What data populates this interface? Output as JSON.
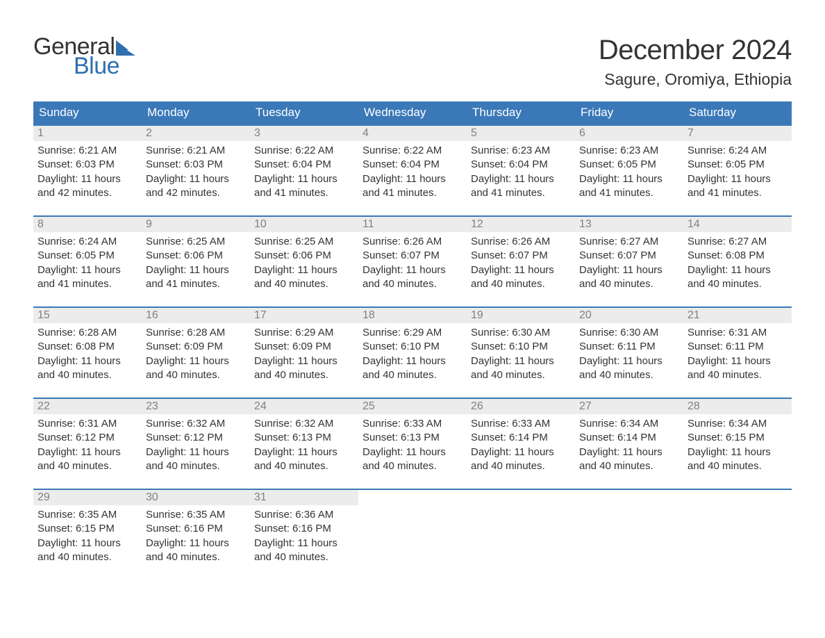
{
  "brand": {
    "part1": "General",
    "part2": "Blue",
    "flag_color": "#2f6fb0"
  },
  "title": "December 2024",
  "location": "Sagure, Oromiya, Ethiopia",
  "colors": {
    "header_bg": "#3b78b8",
    "header_text": "#ffffff",
    "daynum_bg": "#ececec",
    "daynum_text": "#808080",
    "body_text": "#333333",
    "rule": "#3b78b8",
    "background": "#ffffff"
  },
  "typography": {
    "title_fontsize": 40,
    "location_fontsize": 23,
    "dow_fontsize": 17,
    "daynum_fontsize": 16,
    "cell_fontsize": 15
  },
  "days_of_week": [
    "Sunday",
    "Monday",
    "Tuesday",
    "Wednesday",
    "Thursday",
    "Friday",
    "Saturday"
  ],
  "weeks": [
    [
      {
        "n": "1",
        "sunrise": "Sunrise: 6:21 AM",
        "sunset": "Sunset: 6:03 PM",
        "dl1": "Daylight: 11 hours",
        "dl2": "and 42 minutes."
      },
      {
        "n": "2",
        "sunrise": "Sunrise: 6:21 AM",
        "sunset": "Sunset: 6:03 PM",
        "dl1": "Daylight: 11 hours",
        "dl2": "and 42 minutes."
      },
      {
        "n": "3",
        "sunrise": "Sunrise: 6:22 AM",
        "sunset": "Sunset: 6:04 PM",
        "dl1": "Daylight: 11 hours",
        "dl2": "and 41 minutes."
      },
      {
        "n": "4",
        "sunrise": "Sunrise: 6:22 AM",
        "sunset": "Sunset: 6:04 PM",
        "dl1": "Daylight: 11 hours",
        "dl2": "and 41 minutes."
      },
      {
        "n": "5",
        "sunrise": "Sunrise: 6:23 AM",
        "sunset": "Sunset: 6:04 PM",
        "dl1": "Daylight: 11 hours",
        "dl2": "and 41 minutes."
      },
      {
        "n": "6",
        "sunrise": "Sunrise: 6:23 AM",
        "sunset": "Sunset: 6:05 PM",
        "dl1": "Daylight: 11 hours",
        "dl2": "and 41 minutes."
      },
      {
        "n": "7",
        "sunrise": "Sunrise: 6:24 AM",
        "sunset": "Sunset: 6:05 PM",
        "dl1": "Daylight: 11 hours",
        "dl2": "and 41 minutes."
      }
    ],
    [
      {
        "n": "8",
        "sunrise": "Sunrise: 6:24 AM",
        "sunset": "Sunset: 6:05 PM",
        "dl1": "Daylight: 11 hours",
        "dl2": "and 41 minutes."
      },
      {
        "n": "9",
        "sunrise": "Sunrise: 6:25 AM",
        "sunset": "Sunset: 6:06 PM",
        "dl1": "Daylight: 11 hours",
        "dl2": "and 41 minutes."
      },
      {
        "n": "10",
        "sunrise": "Sunrise: 6:25 AM",
        "sunset": "Sunset: 6:06 PM",
        "dl1": "Daylight: 11 hours",
        "dl2": "and 40 minutes."
      },
      {
        "n": "11",
        "sunrise": "Sunrise: 6:26 AM",
        "sunset": "Sunset: 6:07 PM",
        "dl1": "Daylight: 11 hours",
        "dl2": "and 40 minutes."
      },
      {
        "n": "12",
        "sunrise": "Sunrise: 6:26 AM",
        "sunset": "Sunset: 6:07 PM",
        "dl1": "Daylight: 11 hours",
        "dl2": "and 40 minutes."
      },
      {
        "n": "13",
        "sunrise": "Sunrise: 6:27 AM",
        "sunset": "Sunset: 6:07 PM",
        "dl1": "Daylight: 11 hours",
        "dl2": "and 40 minutes."
      },
      {
        "n": "14",
        "sunrise": "Sunrise: 6:27 AM",
        "sunset": "Sunset: 6:08 PM",
        "dl1": "Daylight: 11 hours",
        "dl2": "and 40 minutes."
      }
    ],
    [
      {
        "n": "15",
        "sunrise": "Sunrise: 6:28 AM",
        "sunset": "Sunset: 6:08 PM",
        "dl1": "Daylight: 11 hours",
        "dl2": "and 40 minutes."
      },
      {
        "n": "16",
        "sunrise": "Sunrise: 6:28 AM",
        "sunset": "Sunset: 6:09 PM",
        "dl1": "Daylight: 11 hours",
        "dl2": "and 40 minutes."
      },
      {
        "n": "17",
        "sunrise": "Sunrise: 6:29 AM",
        "sunset": "Sunset: 6:09 PM",
        "dl1": "Daylight: 11 hours",
        "dl2": "and 40 minutes."
      },
      {
        "n": "18",
        "sunrise": "Sunrise: 6:29 AM",
        "sunset": "Sunset: 6:10 PM",
        "dl1": "Daylight: 11 hours",
        "dl2": "and 40 minutes."
      },
      {
        "n": "19",
        "sunrise": "Sunrise: 6:30 AM",
        "sunset": "Sunset: 6:10 PM",
        "dl1": "Daylight: 11 hours",
        "dl2": "and 40 minutes."
      },
      {
        "n": "20",
        "sunrise": "Sunrise: 6:30 AM",
        "sunset": "Sunset: 6:11 PM",
        "dl1": "Daylight: 11 hours",
        "dl2": "and 40 minutes."
      },
      {
        "n": "21",
        "sunrise": "Sunrise: 6:31 AM",
        "sunset": "Sunset: 6:11 PM",
        "dl1": "Daylight: 11 hours",
        "dl2": "and 40 minutes."
      }
    ],
    [
      {
        "n": "22",
        "sunrise": "Sunrise: 6:31 AM",
        "sunset": "Sunset: 6:12 PM",
        "dl1": "Daylight: 11 hours",
        "dl2": "and 40 minutes."
      },
      {
        "n": "23",
        "sunrise": "Sunrise: 6:32 AM",
        "sunset": "Sunset: 6:12 PM",
        "dl1": "Daylight: 11 hours",
        "dl2": "and 40 minutes."
      },
      {
        "n": "24",
        "sunrise": "Sunrise: 6:32 AM",
        "sunset": "Sunset: 6:13 PM",
        "dl1": "Daylight: 11 hours",
        "dl2": "and 40 minutes."
      },
      {
        "n": "25",
        "sunrise": "Sunrise: 6:33 AM",
        "sunset": "Sunset: 6:13 PM",
        "dl1": "Daylight: 11 hours",
        "dl2": "and 40 minutes."
      },
      {
        "n": "26",
        "sunrise": "Sunrise: 6:33 AM",
        "sunset": "Sunset: 6:14 PM",
        "dl1": "Daylight: 11 hours",
        "dl2": "and 40 minutes."
      },
      {
        "n": "27",
        "sunrise": "Sunrise: 6:34 AM",
        "sunset": "Sunset: 6:14 PM",
        "dl1": "Daylight: 11 hours",
        "dl2": "and 40 minutes."
      },
      {
        "n": "28",
        "sunrise": "Sunrise: 6:34 AM",
        "sunset": "Sunset: 6:15 PM",
        "dl1": "Daylight: 11 hours",
        "dl2": "and 40 minutes."
      }
    ],
    [
      {
        "n": "29",
        "sunrise": "Sunrise: 6:35 AM",
        "sunset": "Sunset: 6:15 PM",
        "dl1": "Daylight: 11 hours",
        "dl2": "and 40 minutes."
      },
      {
        "n": "30",
        "sunrise": "Sunrise: 6:35 AM",
        "sunset": "Sunset: 6:16 PM",
        "dl1": "Daylight: 11 hours",
        "dl2": "and 40 minutes."
      },
      {
        "n": "31",
        "sunrise": "Sunrise: 6:36 AM",
        "sunset": "Sunset: 6:16 PM",
        "dl1": "Daylight: 11 hours",
        "dl2": "and 40 minutes."
      },
      null,
      null,
      null,
      null
    ]
  ]
}
